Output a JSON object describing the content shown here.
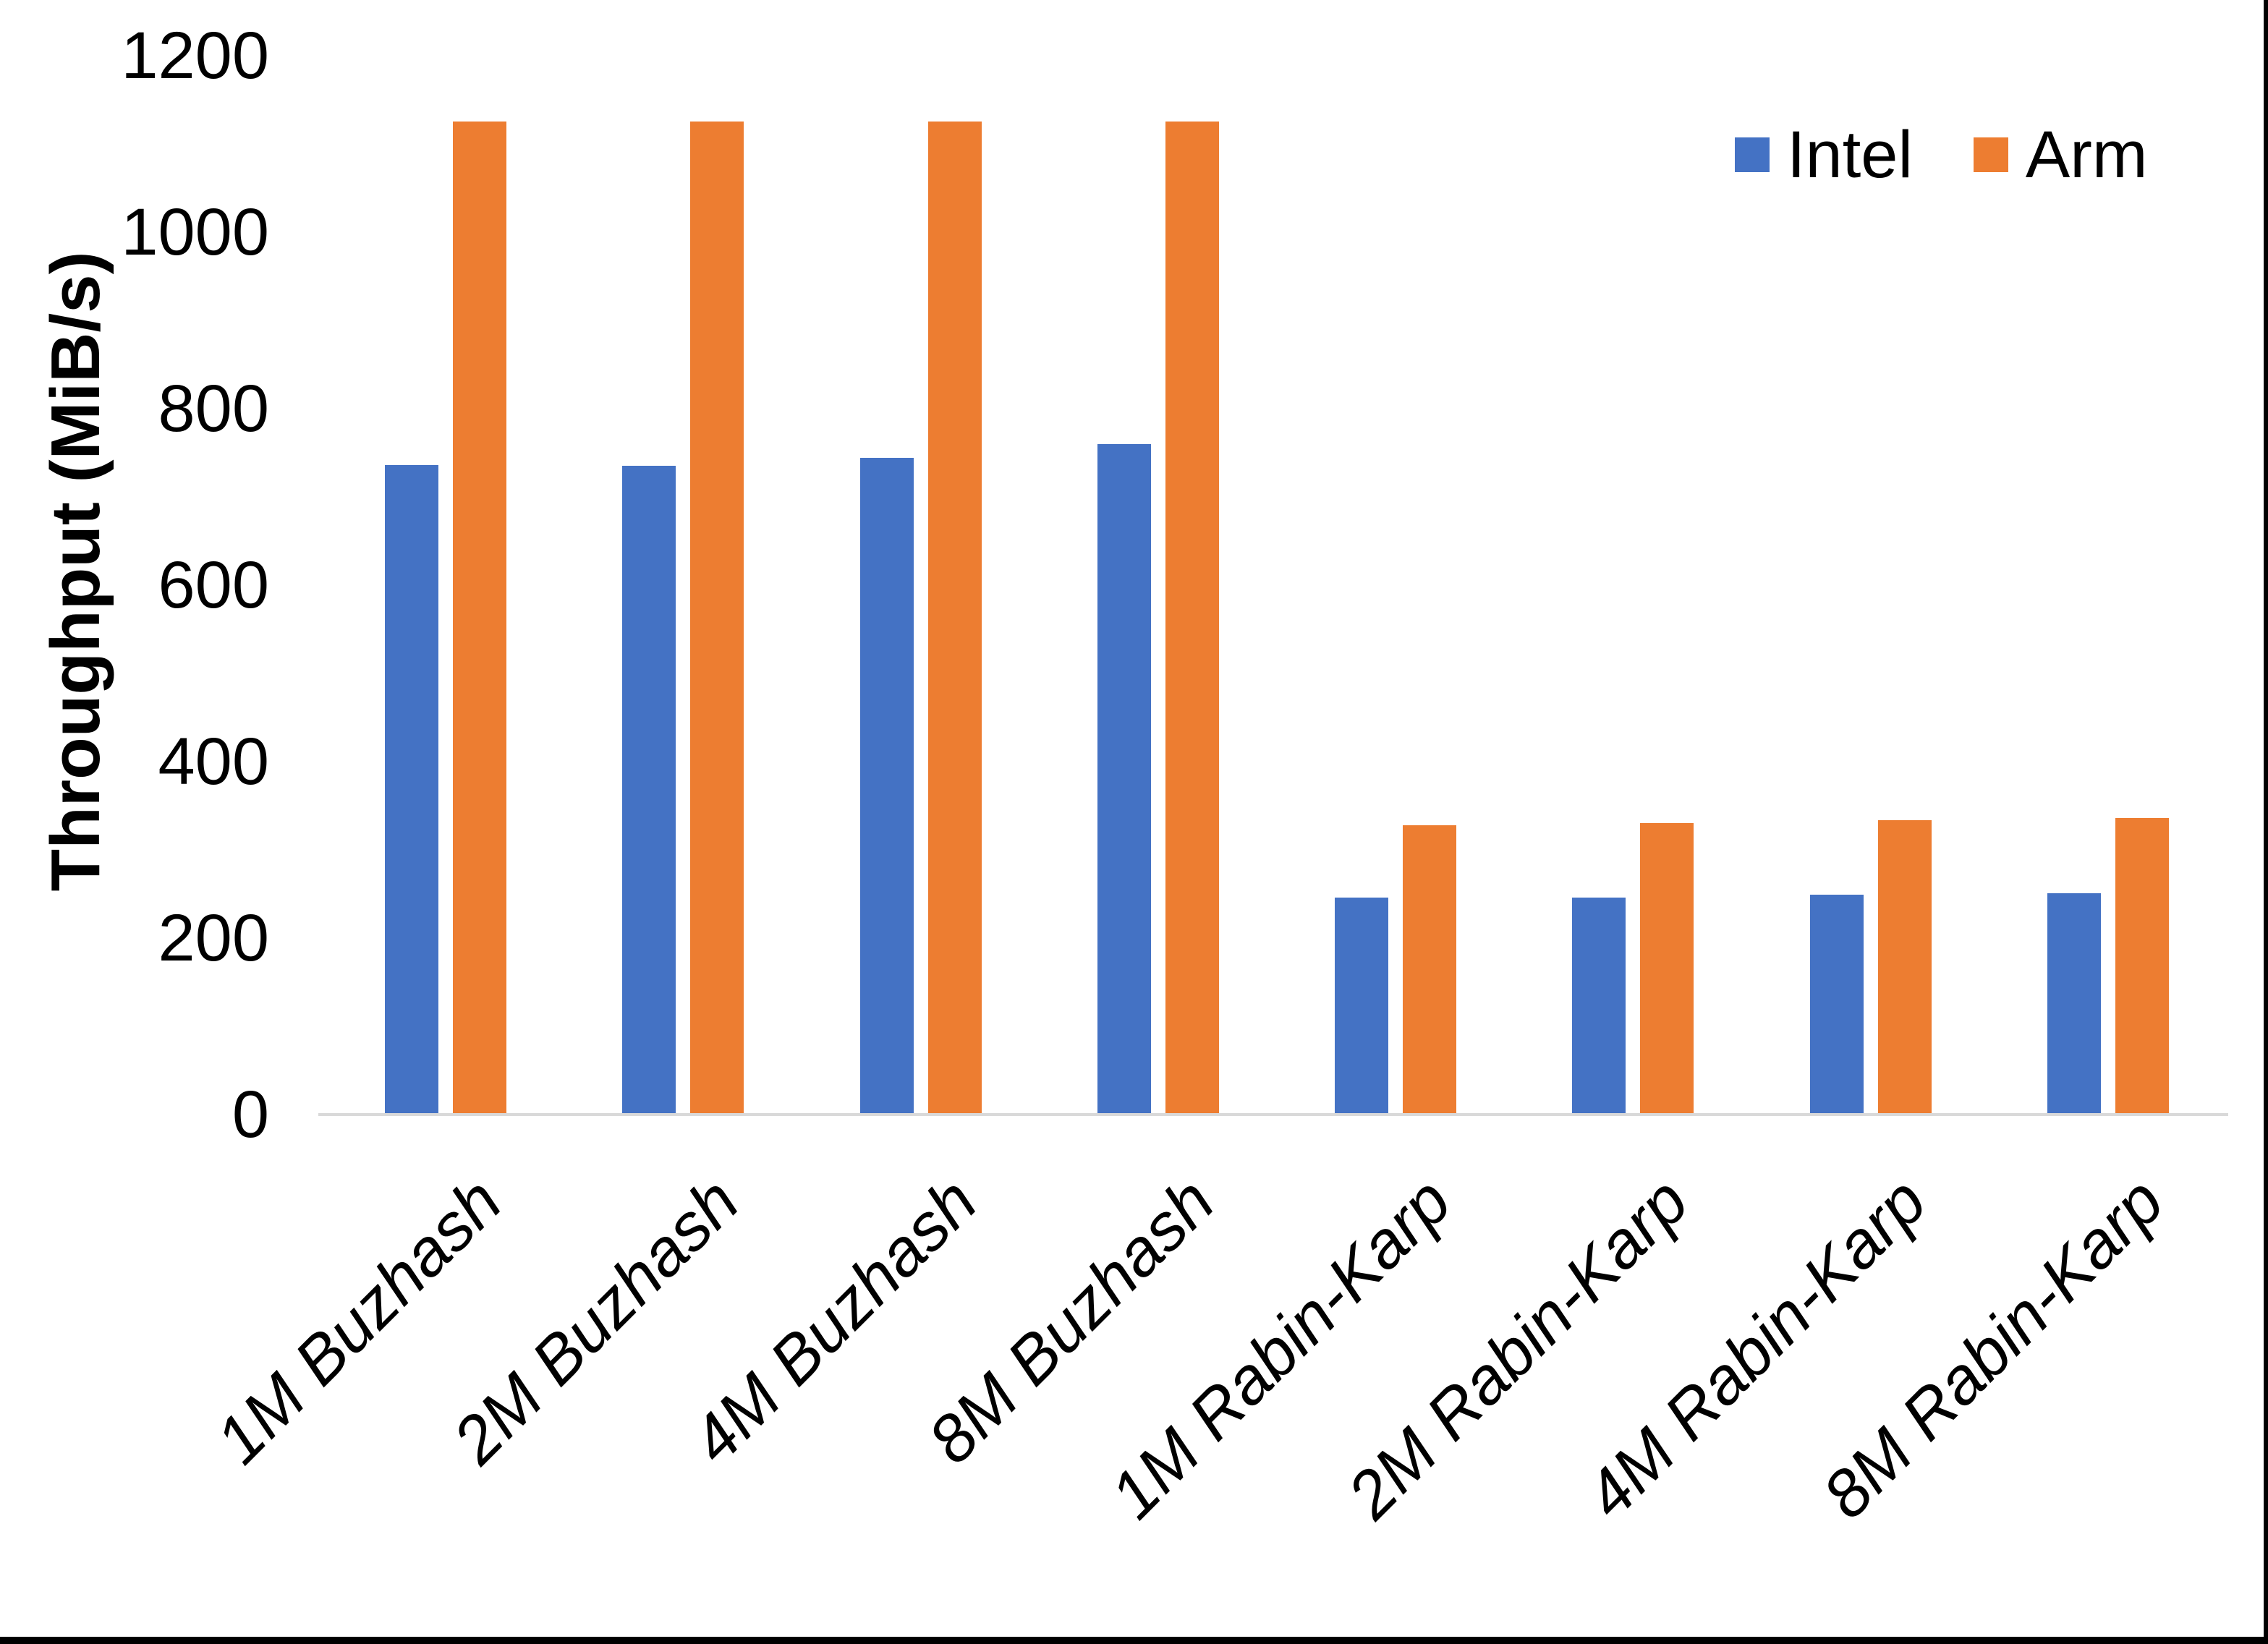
{
  "chart_data": {
    "type": "bar",
    "title": "",
    "categories": [
      "1M Buzhash",
      "2M Buzhash",
      "4M Buzhash",
      "8M Buzhash",
      "1M Rabin-Karp",
      "2M Rabin-Karp",
      "4M Rabin-Karp",
      "8M Rabin-Karp"
    ],
    "series": [
      {
        "name": "Intel",
        "color": "#4472C4",
        "values": [
          736,
          735,
          744,
          760,
          246,
          246,
          249,
          251
        ]
      },
      {
        "name": "Arm",
        "color": "#ED7D31",
        "values": [
          1125,
          1125,
          1125,
          1125,
          328,
          330,
          334,
          336
        ]
      }
    ],
    "xlabel": "",
    "ylabel": "Throughput (MiB/s)",
    "ylim": [
      0,
      1200
    ],
    "yticks": [
      0,
      200,
      400,
      600,
      800,
      1000,
      1200
    ],
    "grid": false,
    "legend_position": "top-right",
    "x_tick_style": "italic, rotated 45deg"
  },
  "legend": {
    "items": [
      {
        "label": "Intel",
        "color": "#4472C4"
      },
      {
        "label": "Arm",
        "color": "#ED7D31"
      }
    ]
  },
  "colors": {
    "axis_line": "#D9D9D9",
    "text": "#000000",
    "window_edge": "#000000",
    "background": "#FFFFFF"
  }
}
